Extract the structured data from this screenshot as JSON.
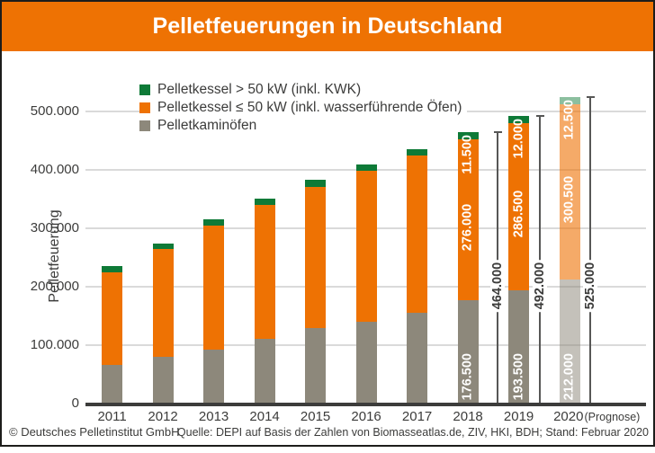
{
  "header": {
    "title": "Pelletfeuerungen in Deutschland"
  },
  "colors": {
    "brand_orange": "#ee7203",
    "dark_green": "#0e7a37",
    "gray": "#8d887b",
    "prognose_orange": "rgba(238,114,3,0.6)",
    "prognose_green": "rgba(14,122,55,0.48)",
    "prognose_gray": "rgba(141,136,123,0.52)",
    "axis": "#3c3c3b",
    "gridline": "#dadada"
  },
  "legend": {
    "items": [
      {
        "label": "Pelletkessel > 50 kW (inkl. KWK)",
        "color": "#0e7a37"
      },
      {
        "label": "Pelletkessel ≤ 50 kW (inkl. wasserführende Öfen)",
        "color": "#ee7203"
      },
      {
        "label": "Pelletkaminöfen",
        "color": "#8d887b"
      }
    ]
  },
  "chart_data": {
    "type": "bar",
    "stacked": true,
    "title": "Pelletfeuerungen in Deutschland",
    "xlabel": "",
    "ylabel": "Pelletfeuerung",
    "ylim": [
      0,
      500000
    ],
    "ytick_values": [
      0,
      100000,
      200000,
      300000,
      400000,
      500000
    ],
    "ytick_labels": [
      "0",
      "100.000",
      "200.000",
      "300.000",
      "400.000",
      "500.000"
    ],
    "grid": true,
    "legend_position": "top-left",
    "categories": [
      "2011",
      "2012",
      "2013",
      "2014",
      "2015",
      "2016",
      "2017",
      "2018",
      "2019",
      "2020"
    ],
    "prognose_year": "2020",
    "prognose_suffix": "(Prognose)",
    "series": [
      {
        "name": "Pelletkaminöfen",
        "color": "#8d887b",
        "prognose_color": "rgba(141,136,123,0.52)",
        "values": [
          65500,
          80500,
          92500,
          111500,
          129500,
          140500,
          156000,
          176500,
          193500,
          212000
        ]
      },
      {
        "name": "Pelletkessel ≤ 50 kW (inkl. wasserführende Öfen)",
        "color": "#ee7203",
        "prognose_color": "rgba(238,114,3,0.6)",
        "values": [
          159500,
          183500,
          212500,
          229000,
          242000,
          257500,
          268500,
          276000,
          286500,
          300500
        ]
      },
      {
        "name": "Pelletkessel > 50 kW (inkl. KWK)",
        "color": "#0e7a37",
        "prognose_color": "rgba(14,122,55,0.48)",
        "values": [
          10500,
          10500,
          11000,
          11000,
          11500,
          11500,
          11500,
          11500,
          12000,
          12500
        ]
      }
    ],
    "labeled_years": [
      "2018",
      "2019",
      "2020"
    ],
    "segment_labels": {
      "2018": [
        "176.500",
        "276.000",
        "11.500"
      ],
      "2019": [
        "193.500",
        "286.500",
        "12.000"
      ],
      "2020": [
        "212.000",
        "300.500",
        "12.500"
      ]
    },
    "total_labels": {
      "2018": "464.000",
      "2019": "492.000",
      "2020": "525.000"
    }
  },
  "footer": {
    "copyright": "© Deutsches Pelletinstitut GmbH",
    "source": "Quelle: DEPI auf Basis der Zahlen von Biomasseatlas.de, ZIV, HKI, BDH; Stand: Februar 2020"
  }
}
